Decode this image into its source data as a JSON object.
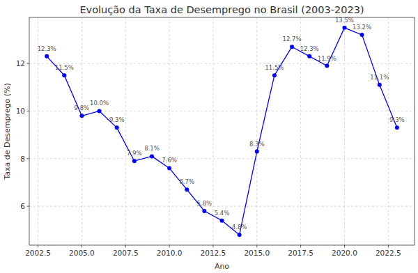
{
  "chart_data": {
    "type": "line",
    "title": "Evolução da Taxa de Desemprego no Brasil (2003-2023)",
    "x_label": "Ano",
    "y_label": "Taxa de Desemprego (%)",
    "x": [
      2003,
      2004,
      2005,
      2006,
      2007,
      2008,
      2009,
      2010,
      2011,
      2012,
      2013,
      2014,
      2015,
      2016,
      2017,
      2018,
      2019,
      2020,
      2021,
      2022,
      2023
    ],
    "values": [
      12.3,
      11.5,
      9.8,
      10.0,
      9.3,
      7.9,
      8.1,
      7.6,
      6.7,
      5.8,
      5.4,
      4.8,
      8.3,
      11.5,
      12.7,
      12.3,
      11.9,
      13.5,
      13.2,
      11.1,
      9.3
    ],
    "value_labels": [
      "12.3%",
      "11.5%",
      "9.8%",
      "10.0%",
      "9.3%",
      "7.9%",
      "8.1%",
      "7.6%",
      "6.7%",
      "5.8%",
      "5.4%",
      "4.8%",
      "8.3%",
      "11.5%",
      "12.7%",
      "12.3%",
      "11.9%",
      "13.5%",
      "13.2%",
      "11.1%",
      "9.3%"
    ],
    "color": "#0000ff",
    "marker": "circle",
    "data_labels": true,
    "grid": true,
    "xlim": [
      2002,
      2024
    ],
    "xticks": [
      {
        "value": 2002.5,
        "label": "2002.5"
      },
      {
        "value": 2005,
        "label": "2005.0"
      },
      {
        "value": 2007.5,
        "label": "2007.5"
      },
      {
        "value": 2010,
        "label": "2010.0"
      },
      {
        "value": 2012.5,
        "label": "2012.5"
      },
      {
        "value": 2015,
        "label": "2015.0"
      },
      {
        "value": 2017.5,
        "label": "2017.5"
      },
      {
        "value": 2020,
        "label": "2020.0"
      },
      {
        "value": 2022.5,
        "label": "2022.5"
      }
    ],
    "ylim": [
      4.365,
      13.935
    ],
    "yticks": [
      6,
      8,
      10,
      12
    ]
  }
}
